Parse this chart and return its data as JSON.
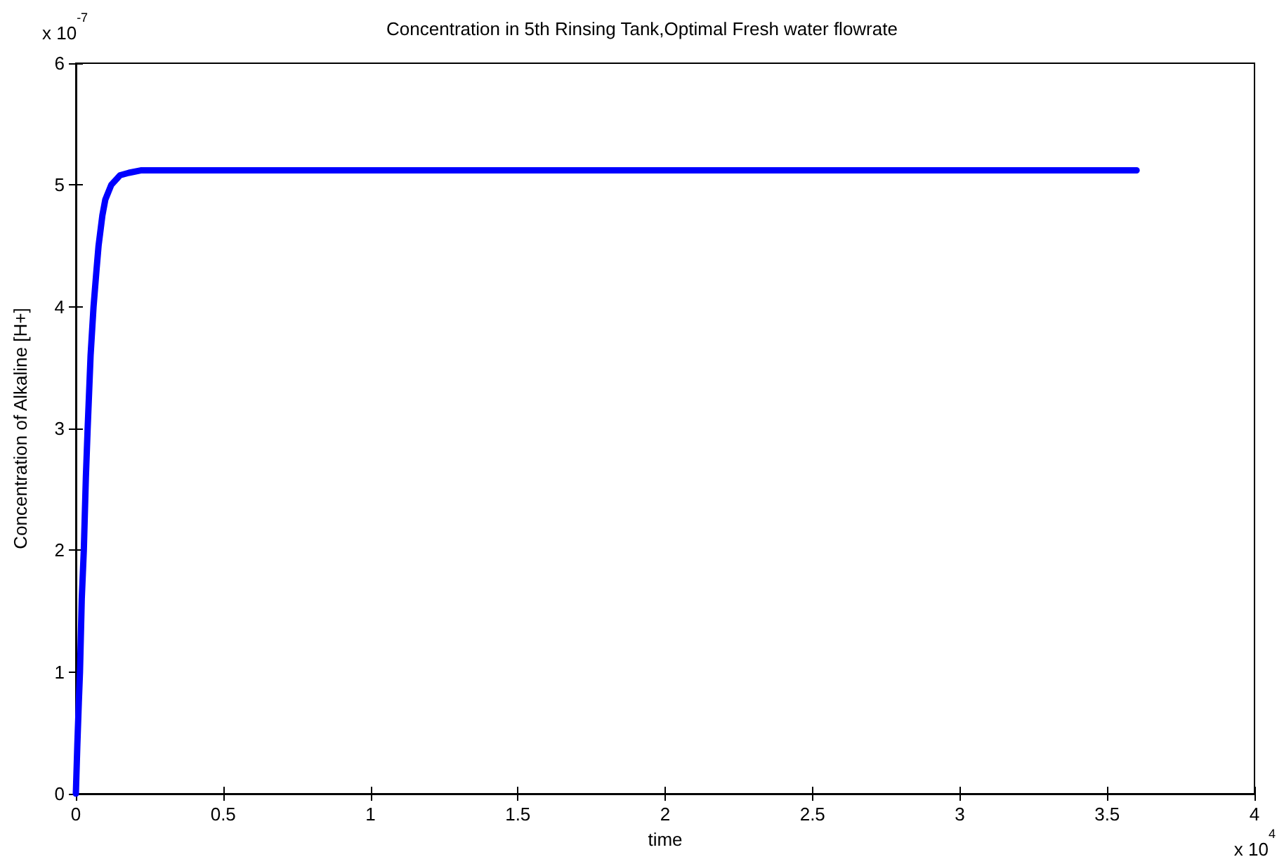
{
  "chart_data": {
    "type": "line",
    "title": "Concentration in 5th Rinsing Tank,Optimal Fresh water flowrate",
    "xlabel": "time",
    "ylabel": "Concentration of Alkaline [H+]",
    "annotations": [
      "x 10$^{-7}$",
      "x 10$^{4}$"
    ],
    "x": [
      0,
      0.005,
      0.01,
      0.014,
      0.02,
      0.027,
      0.034,
      0.04,
      0.05,
      0.06,
      0.07,
      0.077,
      0.09,
      0.1,
      0.12,
      0.15,
      0.18,
      0.22,
      0.5,
      1,
      2,
      3,
      3.6
    ],
    "series": [
      {
        "color": "#0000ff",
        "values": [
          0,
          0.4,
          0.75,
          1,
          1.6,
          2,
          2.6,
          3,
          3.6,
          4,
          4.3,
          4.5,
          4.75,
          4.88,
          5,
          5.08,
          5.1,
          5.12,
          5.12,
          5.12,
          5.12,
          5.12,
          5.12
        ]
      }
    ],
    "xlim": [
      0,
      4
    ],
    "xticks": [
      0,
      0.5,
      1,
      1.5,
      2,
      2.5,
      3,
      3.5,
      4
    ],
    "ylim": [
      0,
      6
    ],
    "yticks": [
      0,
      1,
      2,
      3,
      4,
      5,
      6
    ],
    "grid": false,
    "marker": "none",
    "line_style": "solid"
  }
}
